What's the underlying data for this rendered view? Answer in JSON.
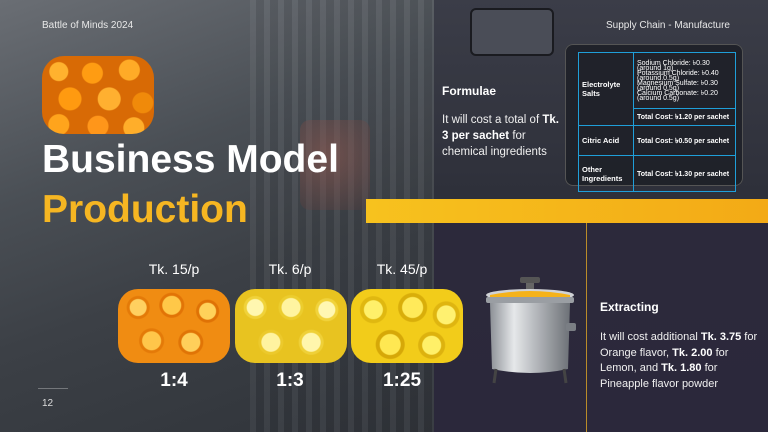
{
  "header": {
    "left": "Battle of Minds 2024",
    "right": "Supply Chain - Manufacture"
  },
  "page_number": "12",
  "title": {
    "line1": "Business Model",
    "line2": "Production"
  },
  "fruits": [
    {
      "name": "orange",
      "price": "Tk. 15/p",
      "ratio": "1:4"
    },
    {
      "name": "lemon",
      "price": "Tk. 6/p",
      "ratio": "1:3"
    },
    {
      "name": "pineapple",
      "price": "Tk. 45/p",
      "ratio": "1:25"
    }
  ],
  "formulae": {
    "title": "Formulae",
    "text_pre": "It will cost a total of ",
    "text_bold": "Tk. 3 per sachet",
    "text_post": " for chemical ingredients"
  },
  "table": {
    "electrolyte": {
      "name": "Electrolyte Salts",
      "details": [
        "Sodium Chloride: ৳0.30 (around 1g)",
        "Potassium Chloride: ৳0.40 (around 0.5g)",
        "Magnesium Sulfate: ৳0.30 (around 0.5g)",
        "Calcium Carbonate: ৳0.20 (around 0.5g)"
      ],
      "total": "Total Cost: ৳1.20 per sachet"
    },
    "citric": {
      "name": "Citric Acid",
      "total": "Total Cost: ৳0.50 per sachet"
    },
    "other": {
      "name": "Other Ingredients",
      "total": "Total Cost: ৳1.30 per sachet"
    }
  },
  "extracting": {
    "title": "Extracting",
    "t1": "It will cost additional ",
    "b1": "Tk. 3.75",
    "t2": " for Orange flavor, ",
    "b2": "Tk. 2.00",
    "t3": " for Lemon, and ",
    "b3": "Tk. 1.80",
    "t4": " for Pineapple flavor powder"
  },
  "colors": {
    "accent": "#f6b622",
    "table_border": "#1f9fd9"
  }
}
